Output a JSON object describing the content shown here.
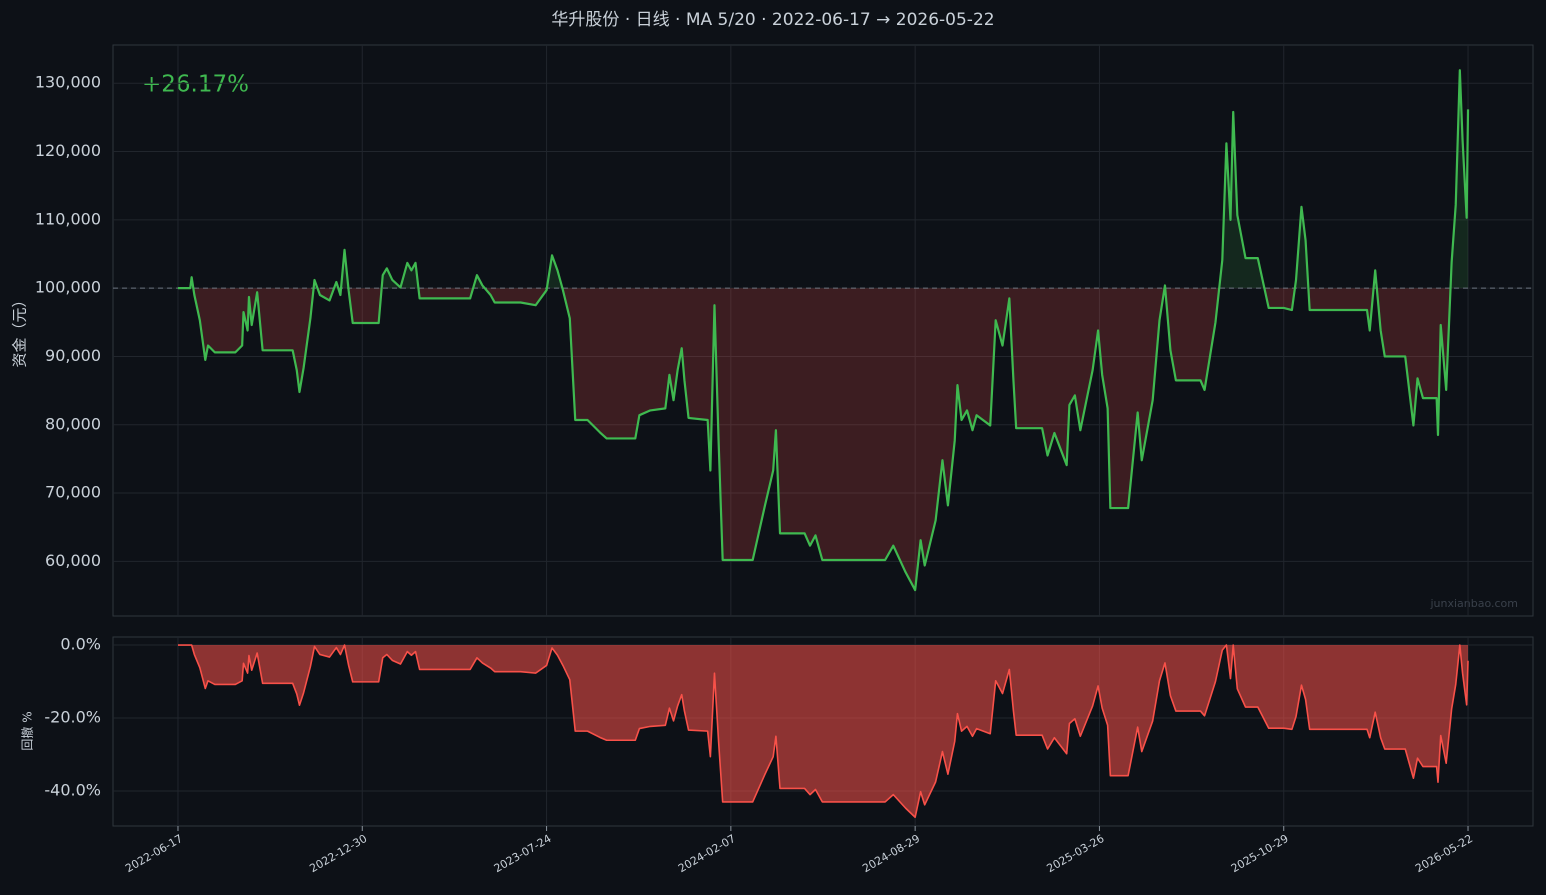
{
  "chart_data": [
    {
      "type": "line",
      "title": "华升股份 · 日线 · MA 5/20 · 2022-06-17 → 2026-05-22",
      "ylabel": "资金（元）",
      "annotation": "+26.17%",
      "annotation_color": "#3fb950",
      "watermark": "junxianbao.com",
      "baseline": 100000,
      "above_color": "#3fb950",
      "below_color": "#f85149",
      "grid": true,
      "ylim": [
        52000,
        135600
      ],
      "yticks": [
        {
          "value": 60000,
          "label": "60,000"
        },
        {
          "value": 70000,
          "label": "70,000"
        },
        {
          "value": 80000,
          "label": "80,000"
        },
        {
          "value": 90000,
          "label": "90,000"
        },
        {
          "value": 100000,
          "label": "100,000"
        },
        {
          "value": 110000,
          "label": "110,000"
        },
        {
          "value": 120000,
          "label": "120,000"
        },
        {
          "value": 130000,
          "label": "130,000"
        }
      ],
      "series": [
        {
          "color": "#3fb950",
          "values": [
            100000,
            100000,
            101600,
            99000,
            95300,
            89500,
            91600,
            90600,
            90600,
            91600,
            96500,
            93800,
            98700,
            94600,
            99400,
            90900,
            90900,
            88000,
            84800,
            88300,
            95600,
            101200,
            99000,
            98200,
            100900,
            99000,
            105600,
            99700,
            94900,
            94900,
            101900,
            102900,
            101200,
            100100,
            103700,
            102600,
            103700,
            98500,
            98500,
            101900,
            100400,
            99000,
            97900,
            97900,
            97500,
            99700,
            104800,
            102600,
            99700,
            95600,
            80700,
            80700,
            78900,
            78000,
            78000,
            81400,
            82100,
            82400,
            87300,
            83600,
            88000,
            91200,
            86500,
            81000,
            80700,
            73300,
            97500,
            77700,
            60200,
            60200,
            68200,
            73300,
            79200,
            64100,
            64100,
            62300,
            63800,
            60200,
            60200,
            62300,
            58400,
            55800,
            63100,
            59400,
            66000,
            74800,
            68200,
            77700,
            85800,
            80700,
            82100,
            79200,
            81400,
            79900,
            95300,
            91600,
            98500,
            86500,
            79500,
            79500,
            75500,
            78800,
            74100,
            82900,
            84300,
            79200,
            88000,
            93800,
            87300,
            82400,
            67800,
            67800,
            81800,
            74800,
            83600,
            95300,
            100400,
            90900,
            86500,
            86500,
            85100,
            95000,
            104100,
            121200,
            110000,
            125800,
            110700,
            104400,
            104400,
            97100,
            97100,
            96800,
            101200,
            111900,
            107000,
            96800,
            96800,
            93800,
            102600,
            93800,
            90000,
            90000,
            79900,
            86800,
            83900,
            83900,
            78500,
            94600,
            85100,
            103800,
            112200,
            131900,
            121700,
            110300,
            126170
          ]
        }
      ]
    },
    {
      "type": "area",
      "ylabel": "回撤 %",
      "grid": true,
      "xlim": [
        -47.6,
        992.6
      ],
      "xticks": [
        {
          "value": 0,
          "label": "2022-06-17"
        },
        {
          "value": 135,
          "label": "2022-12-30"
        },
        {
          "value": 270,
          "label": "2023-07-24"
        },
        {
          "value": 405,
          "label": "2024-02-07"
        },
        {
          "value": 540,
          "label": "2024-08-29"
        },
        {
          "value": 675,
          "label": "2025-03-26"
        },
        {
          "value": 810,
          "label": "2025-10-29"
        },
        {
          "value": 945,
          "label": "2026-05-22"
        }
      ],
      "ylim": [
        -49.6,
        2.2
      ],
      "yticks": [
        {
          "value": 0,
          "label": "0.0%"
        },
        {
          "value": -20,
          "label": "-20.0%"
        },
        {
          "value": -40,
          "label": "-40.0%"
        }
      ],
      "x": [
        0,
        9,
        10,
        12,
        16,
        20,
        22,
        27,
        42,
        47,
        48,
        51,
        52,
        54,
        58,
        62,
        84,
        87,
        89,
        92,
        97,
        100,
        104,
        111,
        116,
        119,
        122,
        125,
        128,
        147,
        150,
        153,
        157,
        163,
        168,
        171,
        174,
        177,
        214,
        219,
        223,
        229,
        232,
        251,
        262,
        270,
        274,
        278,
        282,
        287,
        291,
        300,
        309,
        314,
        335,
        338,
        346,
        357,
        360,
        363,
        366,
        369,
        371,
        374,
        388,
        390,
        393,
        396,
        399,
        421,
        430,
        436,
        438,
        441,
        459,
        463,
        467,
        472,
        518,
        524,
        533,
        540,
        544,
        547,
        555,
        560,
        564,
        569,
        571,
        574,
        578,
        582,
        585,
        595,
        599,
        604,
        609,
        612,
        614,
        633,
        637,
        642,
        651,
        653,
        657,
        661,
        670,
        674,
        677,
        681,
        683,
        696,
        703,
        706,
        714,
        719,
        723,
        727,
        731,
        749,
        752,
        760,
        765,
        768,
        771,
        773,
        776,
        782,
        791,
        799,
        810,
        816,
        819,
        823,
        826,
        829,
        871,
        873,
        877,
        881,
        884,
        899,
        905,
        908,
        912,
        922,
        923,
        925,
        929,
        933,
        936,
        939,
        941,
        944,
        945
      ],
      "series": [
        {
          "color": "#f85149",
          "values": [
            0,
            0,
            0,
            -2.6,
            -6.2,
            -11.9,
            -9.8,
            -10.8,
            -10.8,
            -9.8,
            -5,
            -7.7,
            -2.9,
            -6.9,
            -2.2,
            -10.5,
            -10.5,
            -13.4,
            -16.5,
            -13.1,
            -5.9,
            -0.4,
            -2.6,
            -3.3,
            -0.7,
            -2.6,
            0,
            -5.6,
            -10.1,
            -10.1,
            -3.5,
            -2.6,
            -4.2,
            -5.2,
            -1.8,
            -2.8,
            -1.8,
            -6.7,
            -6.7,
            -3.5,
            -4.9,
            -6.3,
            -7.3,
            -7.3,
            -7.7,
            -5.6,
            -0.8,
            -2.8,
            -5.6,
            -9.5,
            -23.6,
            -23.6,
            -25.3,
            -26.1,
            -26.1,
            -22.9,
            -22.3,
            -22,
            -17.3,
            -20.8,
            -16.7,
            -13.6,
            -18.1,
            -23.3,
            -23.6,
            -30.6,
            -7.7,
            -26.4,
            -43,
            -43,
            -35.4,
            -30.6,
            -25,
            -39.3,
            -39.3,
            -41,
            -39.6,
            -43,
            -43,
            -41,
            -44.7,
            -47.2,
            -40.2,
            -43.8,
            -37.5,
            -29.2,
            -35.4,
            -26.4,
            -18.8,
            -23.6,
            -22.3,
            -25,
            -22.9,
            -24.3,
            -9.8,
            -13.3,
            -6.7,
            -18.1,
            -24.7,
            -24.7,
            -28.5,
            -25.4,
            -29.8,
            -21.5,
            -20.2,
            -25,
            -16.7,
            -11.2,
            -17.3,
            -22,
            -35.8,
            -35.8,
            -22.5,
            -29.2,
            -20.8,
            -9.8,
            -4.9,
            -13.9,
            -18.1,
            -18.1,
            -19.4,
            -10,
            -1.4,
            0,
            -9.2,
            0,
            -12,
            -17,
            -17,
            -22.8,
            -22.8,
            -23.1,
            -19.6,
            -11,
            -14.9,
            -23.1,
            -23.1,
            -25.4,
            -18.4,
            -25.4,
            -28.5,
            -28.5,
            -36.5,
            -31,
            -33.3,
            -33.3,
            -37.6,
            -24.8,
            -32.4,
            -17.5,
            -10.8,
            0,
            -7.7,
            -16.4,
            -4.3
          ]
        }
      ]
    }
  ]
}
